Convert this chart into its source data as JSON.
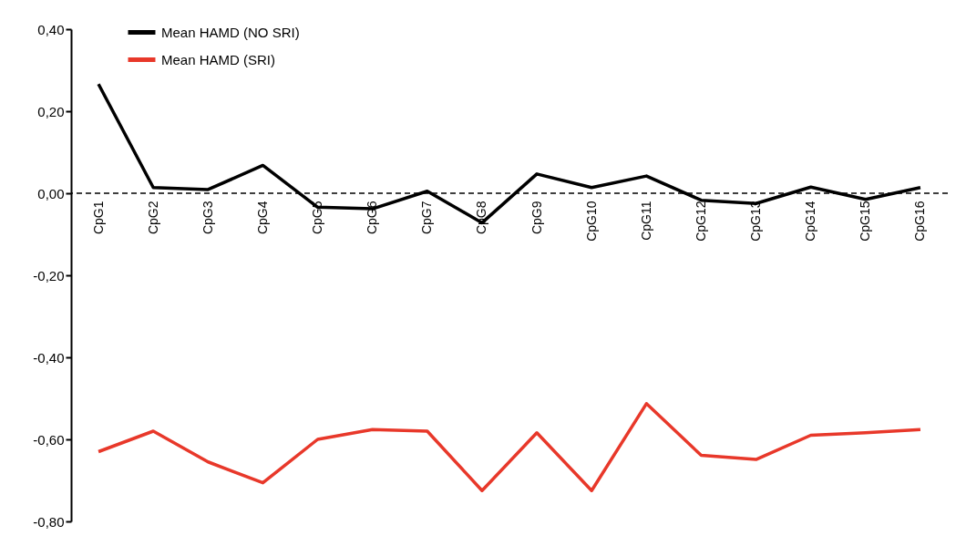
{
  "chart_data": {
    "type": "line",
    "categories": [
      "CpG1",
      "CpG2",
      "CpG3",
      "CpG4",
      "CpG5",
      "CpG6",
      "CpG7",
      "CpG8",
      "CpG9",
      "CpG10",
      "CpG11",
      "CpG12",
      "CpG13",
      "CpG14",
      "CpG15",
      "CpG16"
    ],
    "series": [
      {
        "name": "Mean HAMD (NO SRI)",
        "color": "#000000",
        "values": [
          0.266,
          0.014,
          0.009,
          0.068,
          -0.034,
          -0.038,
          0.005,
          -0.072,
          0.047,
          0.014,
          0.042,
          -0.017,
          -0.025,
          0.015,
          -0.015,
          0.014
        ]
      },
      {
        "name": "Mean HAMD (SRI)",
        "color": "#e8382a",
        "values": [
          -0.63,
          -0.58,
          -0.655,
          -0.706,
          -0.6,
          -0.576,
          -0.58,
          -0.725,
          -0.584,
          -0.725,
          -0.513,
          -0.639,
          -0.649,
          -0.59,
          -0.584,
          -0.576
        ]
      }
    ],
    "ylim": [
      -0.8,
      0.4
    ],
    "yticks": [
      {
        "value": -0.8,
        "label": "-0,80"
      },
      {
        "value": -0.6,
        "label": "-0,60"
      },
      {
        "value": -0.4,
        "label": "-0,40"
      },
      {
        "value": -0.2,
        "label": "-0,20"
      },
      {
        "value": 0,
        "label": "0,00"
      },
      {
        "value": 0.2,
        "label": "0,20"
      },
      {
        "value": 0.4,
        "label": "0,40"
      }
    ],
    "ref_lines": [
      {
        "axis": "y",
        "value": 0,
        "color": "#000000",
        "line_style": "dashed"
      }
    ],
    "grid": false,
    "legend": "top left",
    "line_style": "solid",
    "marker": "none"
  }
}
